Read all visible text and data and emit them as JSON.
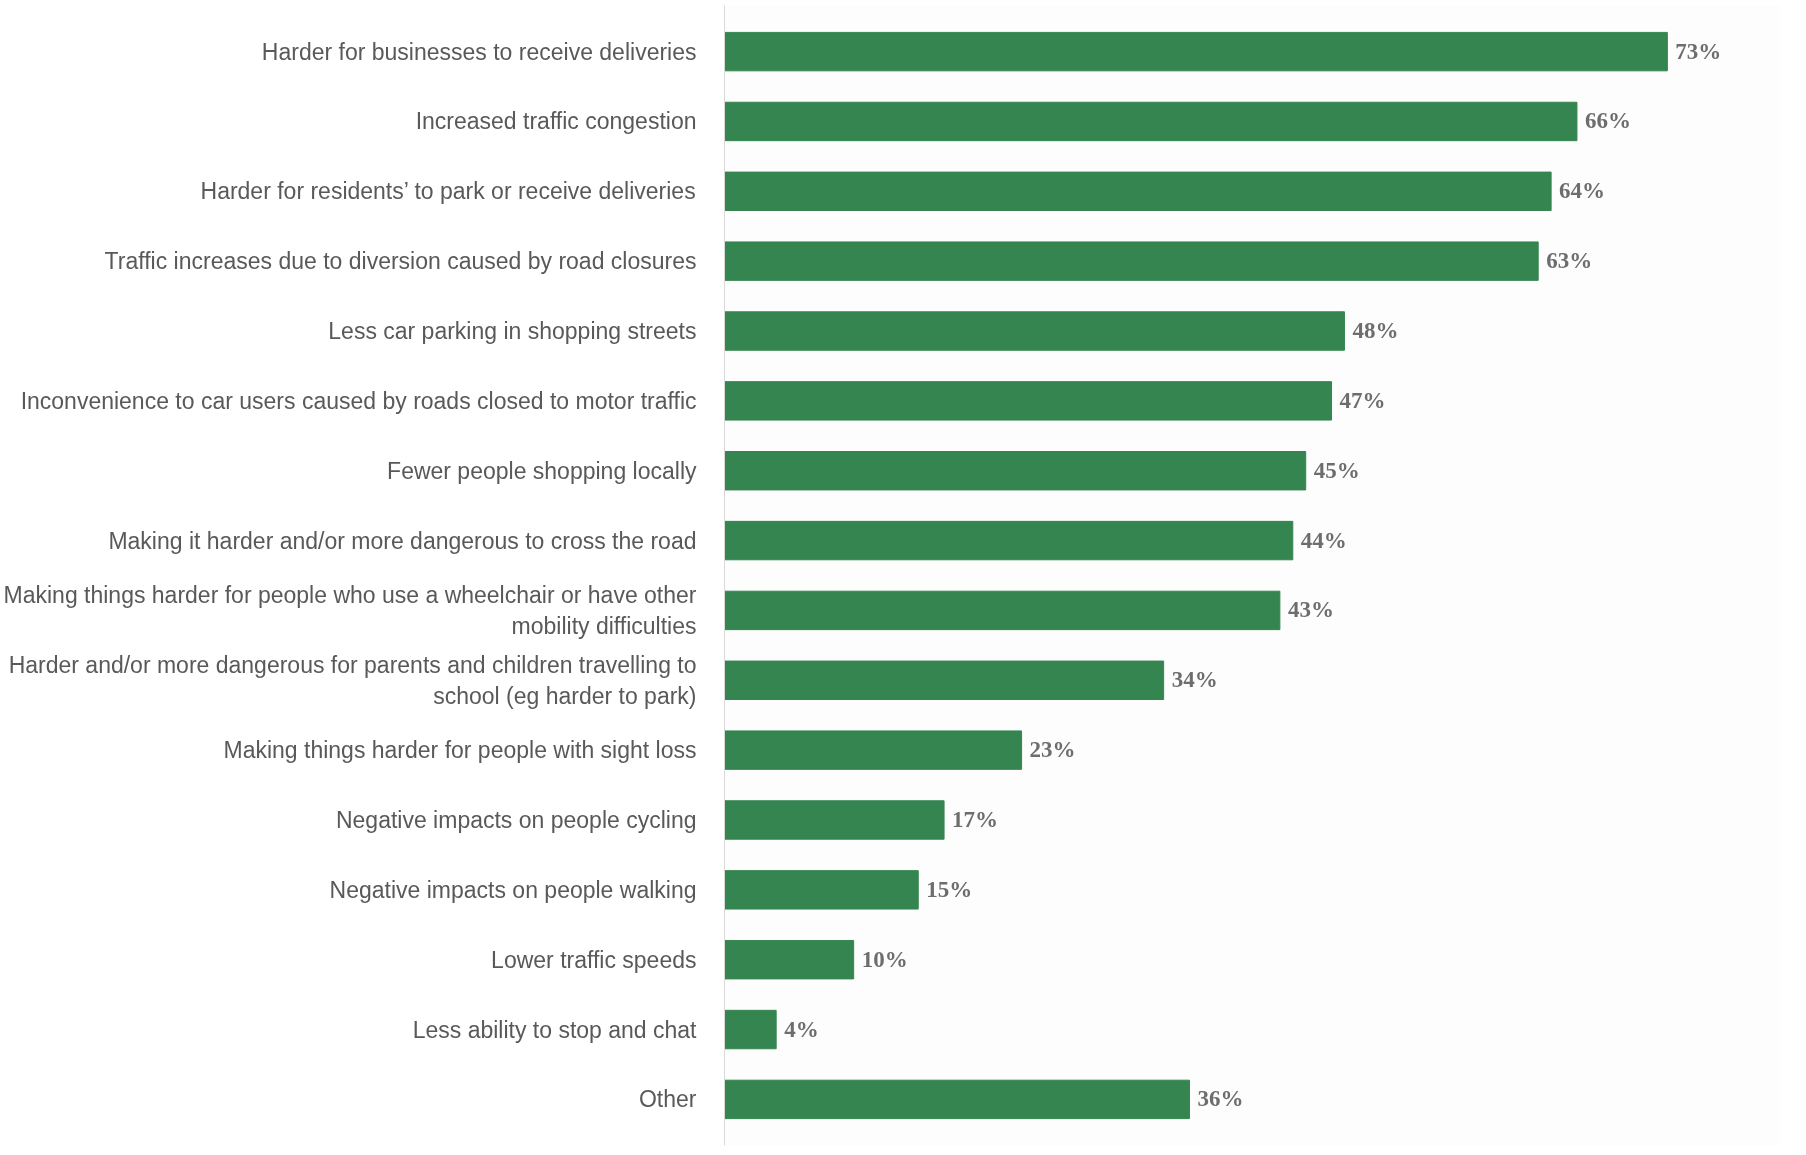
{
  "chart_data": {
    "type": "bar",
    "orientation": "horizontal",
    "categories": [
      "Harder for businesses to receive deliveries",
      "Increased traffic congestion",
      "Harder for residents’ to park or receive deliveries",
      "Traffic increases due to diversion caused by road closures",
      "Less car parking in shopping streets",
      "Inconvenience to car users caused by roads closed to motor traffic",
      "Fewer people shopping locally",
      "Making it harder and/or more dangerous to cross the road",
      "Making things harder for people who use a wheelchair or have other mobility difficulties",
      "Harder and/or more dangerous for parents and children travelling to school (eg harder to park)",
      "Making things harder for people with sight loss",
      "Negative impacts on people cycling",
      "Negative impacts on people walking",
      "Lower traffic speeds",
      "Less ability to stop and chat",
      "Other"
    ],
    "values": [
      73,
      66,
      64,
      63,
      48,
      47,
      45,
      44,
      43,
      34,
      23,
      17,
      15,
      10,
      4,
      36
    ],
    "value_labels": [
      "73%",
      "66%",
      "64%",
      "63%",
      "48%",
      "47%",
      "45%",
      "44%",
      "43%",
      "34%",
      "23%",
      "17%",
      "15%",
      "10%",
      "4%",
      "36%"
    ],
    "color": "#358550",
    "grid": false
  }
}
